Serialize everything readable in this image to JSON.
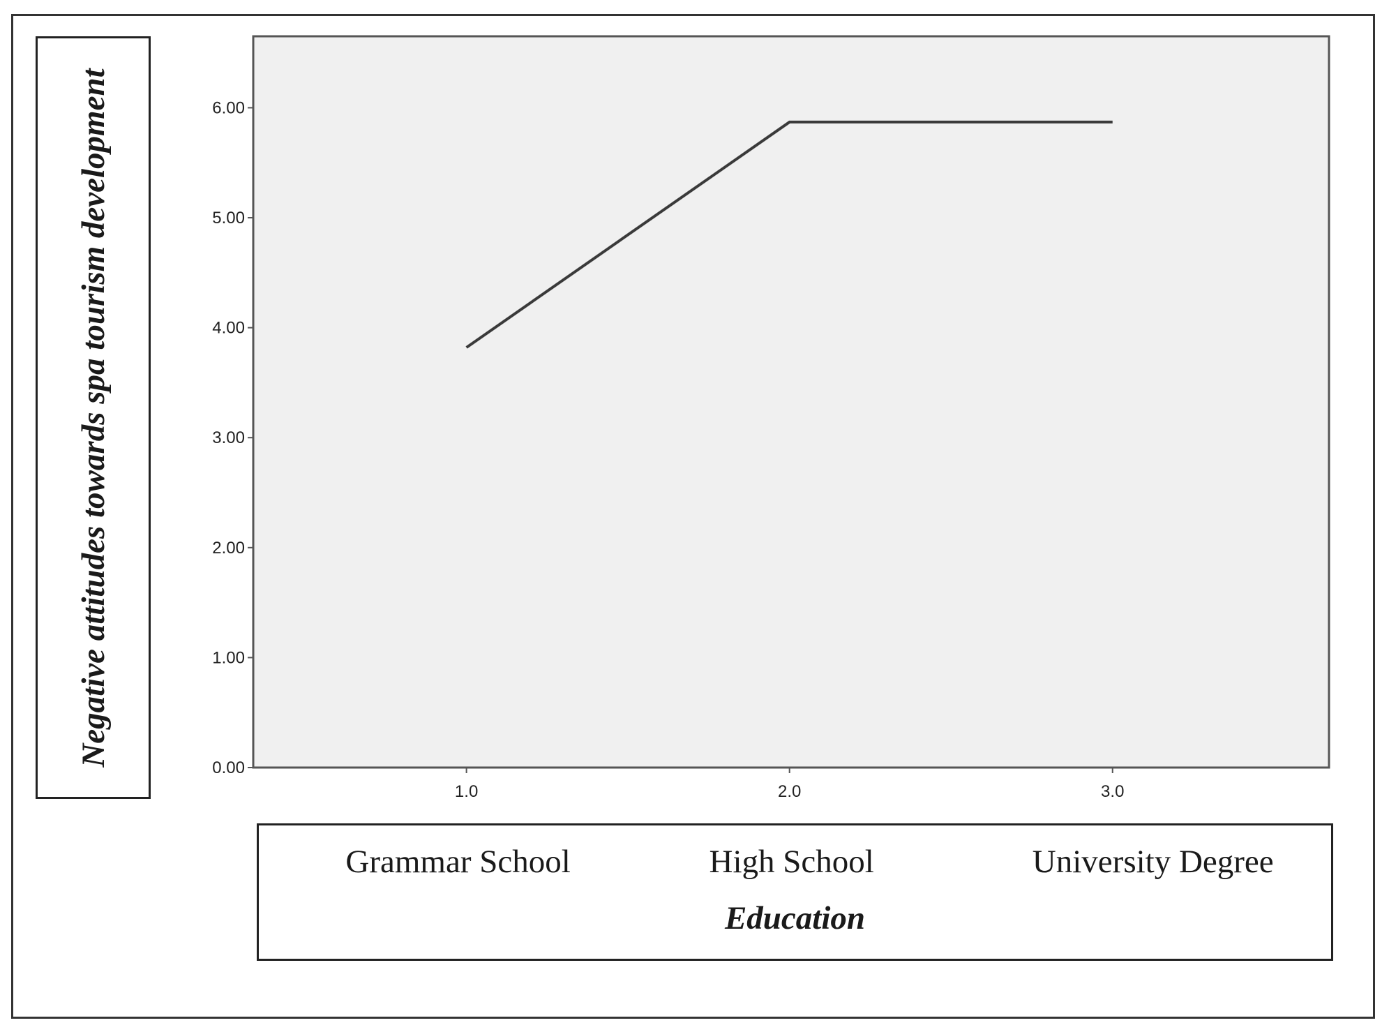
{
  "chart_data": {
    "type": "line",
    "x": [
      1.0,
      2.0,
      3.0
    ],
    "x_tick_labels": [
      "1.0",
      "2.0",
      "3.0"
    ],
    "categories": [
      "Grammar School",
      "High School",
      "University Degree"
    ],
    "series": [
      {
        "values": [
          3.82,
          5.87,
          5.87
        ]
      }
    ],
    "xlabel": "Education",
    "ylabel": "Negative attitudes towards spa tourism development",
    "y_ticks": [
      0,
      1,
      2,
      3,
      4,
      5,
      6
    ],
    "y_tick_labels": [
      "0.00",
      "1.00",
      "2.00",
      "3.00",
      "4.00",
      "5.00",
      "6.00"
    ],
    "ylim": [
      0,
      6.65
    ],
    "xlim": [
      0.34,
      3.67
    ],
    "grid": false,
    "colors": {
      "plot_background": "#f0f0f0",
      "line": "#3a3a3a",
      "axis": "#555555"
    }
  }
}
